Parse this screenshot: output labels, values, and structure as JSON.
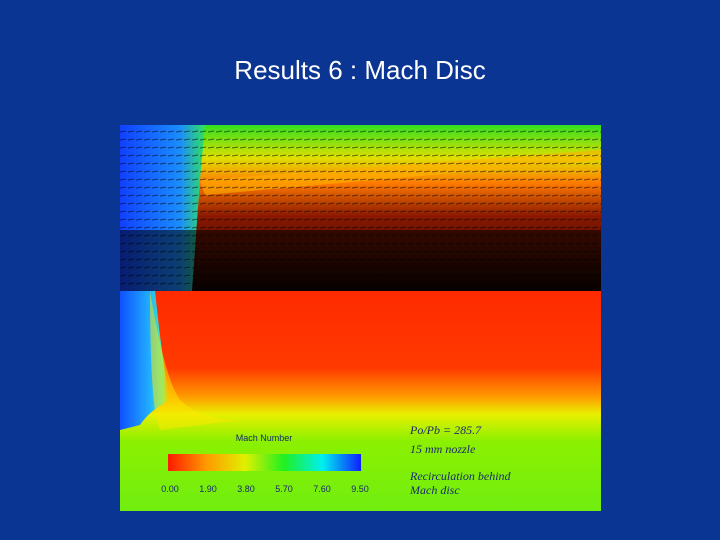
{
  "title": "Results 6 : Mach Disc",
  "figure": {
    "colorbar": {
      "label": "Mach Number",
      "ticks": [
        "0.00",
        "1.90",
        "3.80",
        "5.70",
        "7.60",
        "9.50"
      ]
    },
    "annotations": [
      "Po/Pb = 285.7",
      "15 mm nozzle",
      "Recirculation behind",
      "Mach disc"
    ]
  }
}
